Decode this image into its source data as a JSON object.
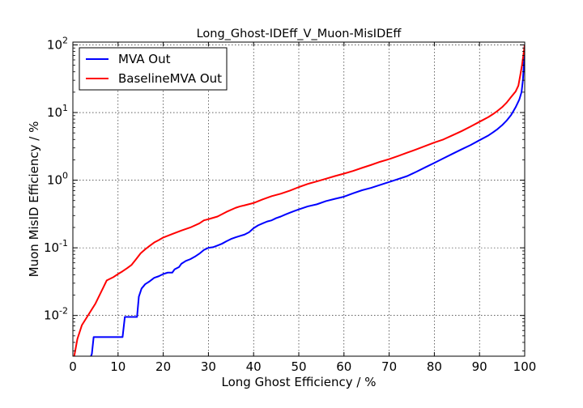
{
  "chart_data": {
    "type": "line",
    "title": "Long_Ghost-IDEff_V_Muon-MisIDEff",
    "xlabel": "Long Ghost Efficiency / %",
    "ylabel": "Muon MisID Efficiency / %",
    "xlim": [
      0,
      100
    ],
    "ylim": [
      0.0025,
      110
    ],
    "yscale": "log",
    "grid": true,
    "legend_position": "upper-left",
    "xticks": [
      {
        "value": 0,
        "label": "0"
      },
      {
        "value": 10,
        "label": "10"
      },
      {
        "value": 20,
        "label": "20"
      },
      {
        "value": 30,
        "label": "30"
      },
      {
        "value": 40,
        "label": "40"
      },
      {
        "value": 50,
        "label": "50"
      },
      {
        "value": 60,
        "label": "60"
      },
      {
        "value": 70,
        "label": "70"
      },
      {
        "value": 80,
        "label": "80"
      },
      {
        "value": 90,
        "label": "90"
      },
      {
        "value": 100,
        "label": "100"
      }
    ],
    "yticks": [
      {
        "value": 0.01,
        "base": "10",
        "exp": "-2"
      },
      {
        "value": 0.1,
        "base": "10",
        "exp": "-1"
      },
      {
        "value": 1,
        "base": "10",
        "exp": "0"
      },
      {
        "value": 10,
        "base": "10",
        "exp": "1"
      },
      {
        "value": 100,
        "base": "10",
        "exp": "2"
      }
    ],
    "series": [
      {
        "name": "MVA Out",
        "color": "#0000ff",
        "points": [
          [
            4.0,
            0.0025
          ],
          [
            4.2,
            0.0027
          ],
          [
            4.6,
            0.0048
          ],
          [
            6,
            0.0048
          ],
          [
            8,
            0.0048
          ],
          [
            10,
            0.0048
          ],
          [
            11.0,
            0.0048
          ],
          [
            11.5,
            0.0095
          ],
          [
            13,
            0.0095
          ],
          [
            14.2,
            0.0095
          ],
          [
            14.6,
            0.019
          ],
          [
            15.2,
            0.025
          ],
          [
            16,
            0.029
          ],
          [
            17,
            0.032
          ],
          [
            18,
            0.036
          ],
          [
            19,
            0.038
          ],
          [
            20,
            0.041
          ],
          [
            21,
            0.043
          ],
          [
            22,
            0.043
          ],
          [
            22.5,
            0.048
          ],
          [
            23.5,
            0.052
          ],
          [
            24,
            0.058
          ],
          [
            25,
            0.064
          ],
          [
            26,
            0.068
          ],
          [
            27,
            0.074
          ],
          [
            28,
            0.082
          ],
          [
            29,
            0.093
          ],
          [
            30,
            0.1
          ],
          [
            31,
            0.102
          ],
          [
            32,
            0.108
          ],
          [
            33,
            0.115
          ],
          [
            34,
            0.125
          ],
          [
            35,
            0.135
          ],
          [
            36,
            0.143
          ],
          [
            37,
            0.15
          ],
          [
            38,
            0.157
          ],
          [
            39,
            0.17
          ],
          [
            40,
            0.195
          ],
          [
            41,
            0.215
          ],
          [
            42,
            0.23
          ],
          [
            43,
            0.245
          ],
          [
            44,
            0.255
          ],
          [
            45,
            0.275
          ],
          [
            46,
            0.29
          ],
          [
            47,
            0.31
          ],
          [
            48,
            0.33
          ],
          [
            49,
            0.35
          ],
          [
            50,
            0.37
          ],
          [
            52,
            0.41
          ],
          [
            54,
            0.44
          ],
          [
            56,
            0.49
          ],
          [
            58,
            0.53
          ],
          [
            60,
            0.57
          ],
          [
            62,
            0.64
          ],
          [
            64,
            0.71
          ],
          [
            66,
            0.77
          ],
          [
            68,
            0.85
          ],
          [
            70,
            0.94
          ],
          [
            72,
            1.04
          ],
          [
            74,
            1.15
          ],
          [
            76,
            1.33
          ],
          [
            78,
            1.55
          ],
          [
            80,
            1.8
          ],
          [
            82,
            2.1
          ],
          [
            84,
            2.45
          ],
          [
            86,
            2.85
          ],
          [
            88,
            3.3
          ],
          [
            90,
            3.9
          ],
          [
            92,
            4.6
          ],
          [
            93,
            5.1
          ],
          [
            94,
            5.7
          ],
          [
            95,
            6.5
          ],
          [
            96,
            7.6
          ],
          [
            97,
            9.2
          ],
          [
            98,
            12
          ],
          [
            98.8,
            15.5
          ],
          [
            99.3,
            20
          ],
          [
            99.6,
            30
          ],
          [
            99.8,
            50
          ],
          [
            100,
            100
          ]
        ]
      },
      {
        "name": "BaselineMVA Out",
        "color": "#ff0000",
        "points": [
          [
            0.3,
            0.0025
          ],
          [
            1,
            0.0045
          ],
          [
            2,
            0.0072
          ],
          [
            3,
            0.0092
          ],
          [
            5,
            0.015
          ],
          [
            7.5,
            0.033
          ],
          [
            9,
            0.037
          ],
          [
            10,
            0.041
          ],
          [
            11,
            0.045
          ],
          [
            12,
            0.05
          ],
          [
            13,
            0.056
          ],
          [
            14,
            0.068
          ],
          [
            15,
            0.083
          ],
          [
            16,
            0.095
          ],
          [
            17,
            0.107
          ],
          [
            18,
            0.12
          ],
          [
            19,
            0.13
          ],
          [
            20,
            0.142
          ],
          [
            22,
            0.16
          ],
          [
            24,
            0.18
          ],
          [
            26,
            0.2
          ],
          [
            28,
            0.23
          ],
          [
            29,
            0.255
          ],
          [
            30,
            0.265
          ],
          [
            32,
            0.29
          ],
          [
            34,
            0.34
          ],
          [
            36,
            0.39
          ],
          [
            37,
            0.41
          ],
          [
            38,
            0.425
          ],
          [
            40,
            0.46
          ],
          [
            42,
            0.52
          ],
          [
            44,
            0.58
          ],
          [
            46,
            0.63
          ],
          [
            48,
            0.7
          ],
          [
            50,
            0.79
          ],
          [
            52,
            0.88
          ],
          [
            54,
            0.96
          ],
          [
            56,
            1.05
          ],
          [
            58,
            1.15
          ],
          [
            60,
            1.25
          ],
          [
            62,
            1.37
          ],
          [
            64,
            1.52
          ],
          [
            66,
            1.68
          ],
          [
            68,
            1.87
          ],
          [
            70,
            2.05
          ],
          [
            72,
            2.28
          ],
          [
            74,
            2.55
          ],
          [
            76,
            2.85
          ],
          [
            78,
            3.2
          ],
          [
            80,
            3.6
          ],
          [
            82,
            4.0
          ],
          [
            84,
            4.6
          ],
          [
            86,
            5.3
          ],
          [
            88,
            6.2
          ],
          [
            90,
            7.3
          ],
          [
            92,
            8.6
          ],
          [
            93,
            9.5
          ],
          [
            94,
            10.6
          ],
          [
            95,
            12
          ],
          [
            96,
            14
          ],
          [
            97,
            17
          ],
          [
            98,
            20.5
          ],
          [
            98.6,
            25
          ],
          [
            99,
            35
          ],
          [
            99.4,
            50
          ],
          [
            99.7,
            70
          ],
          [
            100,
            100
          ]
        ]
      }
    ]
  }
}
